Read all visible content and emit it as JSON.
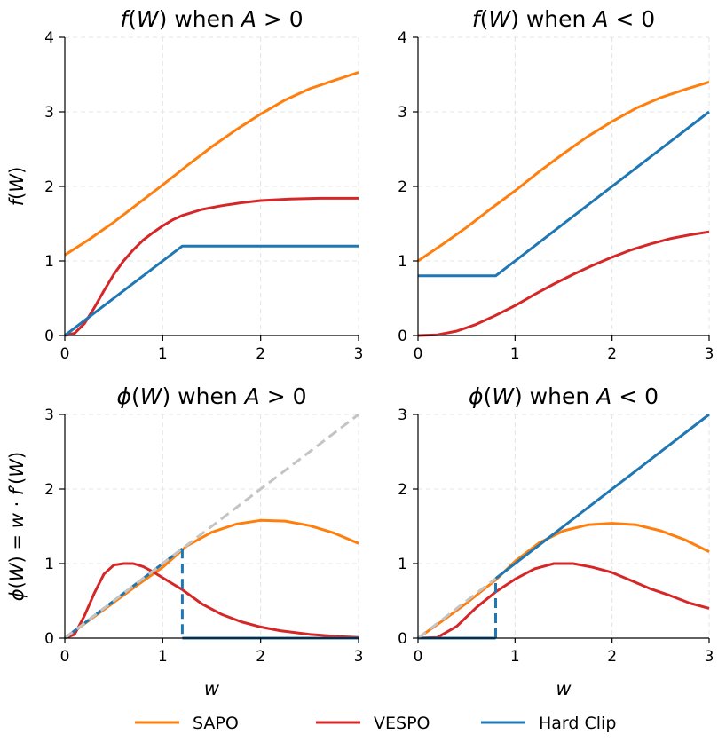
{
  "chart_data": [
    {
      "type": "line",
      "title": "f(W) when A > 0",
      "title_parts": [
        "f",
        "(",
        "W",
        ") when ",
        "A",
        " > 0"
      ],
      "xlabel": "",
      "ylabel": "f(W)",
      "ylabel_parts": [
        "f",
        "(",
        "W",
        ")"
      ],
      "xlim": [
        0,
        3
      ],
      "ylim": [
        0,
        4
      ],
      "xticks": [
        "0",
        "1",
        "2",
        "3"
      ],
      "yticks": [
        "0",
        "1",
        "2",
        "3",
        "4"
      ],
      "grid": true,
      "series": [
        {
          "name": "SAPO",
          "color": "#ff7f0e",
          "x": [
            0,
            0.25,
            0.5,
            0.75,
            1.0,
            1.25,
            1.5,
            1.75,
            2.0,
            2.25,
            2.5,
            2.75,
            3.0
          ],
          "values": [
            1.08,
            1.29,
            1.52,
            1.77,
            2.02,
            2.28,
            2.53,
            2.76,
            2.97,
            3.16,
            3.31,
            3.42,
            3.53
          ]
        },
        {
          "name": "VESPO",
          "color": "#d62728",
          "x": [
            0,
            0.1,
            0.2,
            0.3,
            0.4,
            0.5,
            0.6,
            0.7,
            0.8,
            0.9,
            1.0,
            1.1,
            1.2,
            1.4,
            1.6,
            1.8,
            2.0,
            2.3,
            2.6,
            3.0
          ],
          "values": [
            0,
            0.03,
            0.16,
            0.37,
            0.6,
            0.82,
            1.0,
            1.15,
            1.28,
            1.38,
            1.47,
            1.55,
            1.61,
            1.69,
            1.74,
            1.78,
            1.81,
            1.83,
            1.84,
            1.84
          ]
        },
        {
          "name": "Hard Clip",
          "color": "#1f77b4",
          "x": [
            0,
            1.2,
            3.0
          ],
          "values": [
            0,
            1.2,
            1.2
          ]
        }
      ]
    },
    {
      "type": "line",
      "title": "f(W) when A < 0",
      "title_parts": [
        "f",
        "(",
        "W",
        ") when ",
        "A",
        " < 0"
      ],
      "xlabel": "",
      "ylabel": "",
      "xlim": [
        0,
        3
      ],
      "ylim": [
        0,
        4
      ],
      "xticks": [
        "0",
        "1",
        "2",
        "3"
      ],
      "yticks": [
        "0",
        "1",
        "2",
        "3",
        "4"
      ],
      "grid": true,
      "series": [
        {
          "name": "SAPO",
          "color": "#ff7f0e",
          "x": [
            0,
            0.25,
            0.5,
            0.75,
            1.0,
            1.25,
            1.5,
            1.75,
            2.0,
            2.25,
            2.5,
            2.75,
            3.0
          ],
          "values": [
            1.0,
            1.22,
            1.45,
            1.7,
            1.94,
            2.2,
            2.44,
            2.67,
            2.87,
            3.05,
            3.19,
            3.3,
            3.4
          ]
        },
        {
          "name": "VESPO",
          "color": "#d62728",
          "x": [
            0,
            0.2,
            0.4,
            0.6,
            0.8,
            1.0,
            1.2,
            1.4,
            1.6,
            1.8,
            2.0,
            2.2,
            2.4,
            2.6,
            2.8,
            3.0
          ],
          "values": [
            0,
            0.01,
            0.06,
            0.15,
            0.27,
            0.4,
            0.55,
            0.69,
            0.82,
            0.94,
            1.05,
            1.15,
            1.23,
            1.3,
            1.35,
            1.39
          ]
        },
        {
          "name": "Hard Clip",
          "color": "#1f77b4",
          "x": [
            0,
            0.8,
            3.0
          ],
          "values": [
            0.8,
            0.8,
            3.0
          ]
        }
      ]
    },
    {
      "type": "line",
      "title": "ϕ(W) when A > 0",
      "title_parts": [
        "ϕ",
        "(",
        "W",
        ") when ",
        "A",
        " > 0"
      ],
      "xlabel": "w",
      "ylabel": "ϕ(W) = w · f′(W)",
      "ylabel_parts": [
        "ϕ",
        "(",
        "W",
        ") = ",
        "w",
        " · ",
        "f",
        "′(",
        "W",
        ")"
      ],
      "xlim": [
        0,
        3
      ],
      "ylim": [
        0,
        3
      ],
      "xticks": [
        "0",
        "1",
        "2",
        "3"
      ],
      "yticks": [
        "0",
        "1",
        "2",
        "3"
      ],
      "grid": true,
      "series": [
        {
          "name": "SAPO",
          "color": "#ff7f0e",
          "x": [
            0,
            0.25,
            0.5,
            0.75,
            1.0,
            1.25,
            1.5,
            1.75,
            2.0,
            2.25,
            2.5,
            2.75,
            3.0
          ],
          "values": [
            0,
            0.24,
            0.48,
            0.72,
            0.95,
            1.24,
            1.42,
            1.53,
            1.58,
            1.57,
            1.51,
            1.41,
            1.27
          ]
        },
        {
          "name": "VESPO",
          "color": "#d62728",
          "x": [
            0,
            0.1,
            0.2,
            0.3,
            0.4,
            0.5,
            0.6,
            0.7,
            0.8,
            0.9,
            1.0,
            1.2,
            1.4,
            1.6,
            1.8,
            2.0,
            2.2,
            2.5,
            2.8,
            3.0
          ],
          "values": [
            0,
            0.05,
            0.3,
            0.6,
            0.86,
            0.98,
            1.0,
            1.0,
            0.96,
            0.89,
            0.81,
            0.65,
            0.46,
            0.32,
            0.22,
            0.15,
            0.1,
            0.05,
            0.02,
            0.01
          ]
        },
        {
          "name": "Hard Clip",
          "color": "#1f77b4",
          "x": [
            0,
            1.2
          ],
          "values": [
            0,
            1.2
          ]
        },
        {
          "name": "Hard Clip cutoff",
          "color": "#1f77b4",
          "dashed": true,
          "x": [
            1.2,
            1.2
          ],
          "values": [
            1.2,
            0
          ]
        },
        {
          "name": "Hard Clip zero",
          "color": "#1f77b4",
          "x": [
            1.2,
            3.0
          ],
          "values": [
            0,
            0
          ]
        },
        {
          "name": "Identity",
          "color": "#c4c4c4",
          "dashed": true,
          "x": [
            0,
            3.0
          ],
          "values": [
            0,
            3.0
          ]
        }
      ]
    },
    {
      "type": "line",
      "title": "ϕ(W) when A < 0",
      "title_parts": [
        "ϕ",
        "(",
        "W",
        ") when ",
        "A",
        " < 0"
      ],
      "xlabel": "w",
      "ylabel": "",
      "xlim": [
        0,
        3
      ],
      "ylim": [
        0,
        3
      ],
      "xticks": [
        "0",
        "1",
        "2",
        "3"
      ],
      "yticks": [
        "0",
        "1",
        "2",
        "3"
      ],
      "grid": true,
      "series": [
        {
          "name": "SAPO",
          "color": "#ff7f0e",
          "x": [
            0,
            0.25,
            0.5,
            0.8,
            1.0,
            1.25,
            1.5,
            1.75,
            2.0,
            2.25,
            2.5,
            2.75,
            3.0
          ],
          "values": [
            0,
            0.23,
            0.47,
            0.78,
            1.03,
            1.28,
            1.44,
            1.52,
            1.54,
            1.52,
            1.44,
            1.32,
            1.16
          ]
        },
        {
          "name": "VESPO",
          "color": "#d62728",
          "x": [
            0,
            0.2,
            0.4,
            0.6,
            0.8,
            1.0,
            1.2,
            1.4,
            1.6,
            1.8,
            2.0,
            2.2,
            2.4,
            2.6,
            2.8,
            3.0
          ],
          "values": [
            0,
            0.01,
            0.16,
            0.41,
            0.62,
            0.79,
            0.93,
            1.0,
            1.0,
            0.95,
            0.88,
            0.77,
            0.66,
            0.57,
            0.47,
            0.4
          ]
        },
        {
          "name": "Hard Clip",
          "color": "#1f77b4",
          "x": [
            0.8,
            3.0
          ],
          "values": [
            0.8,
            3.0
          ]
        },
        {
          "name": "Hard Clip zero",
          "color": "#1f77b4",
          "x": [
            0,
            0.8
          ],
          "values": [
            0,
            0
          ]
        },
        {
          "name": "Hard Clip cutoff",
          "color": "#1f77b4",
          "dashed": true,
          "x": [
            0.8,
            0.8
          ],
          "values": [
            0,
            0.8
          ]
        },
        {
          "name": "Identity",
          "color": "#c4c4c4",
          "dashed": true,
          "x": [
            0,
            0.8
          ],
          "values": [
            0,
            0.8
          ]
        }
      ]
    }
  ],
  "legend": {
    "placement": "bottom-center",
    "items": [
      {
        "label": "SAPO",
        "color": "#ff7f0e"
      },
      {
        "label": "VESPO",
        "color": "#d62728"
      },
      {
        "label": "Hard Clip",
        "color": "#1f77b4"
      }
    ]
  }
}
